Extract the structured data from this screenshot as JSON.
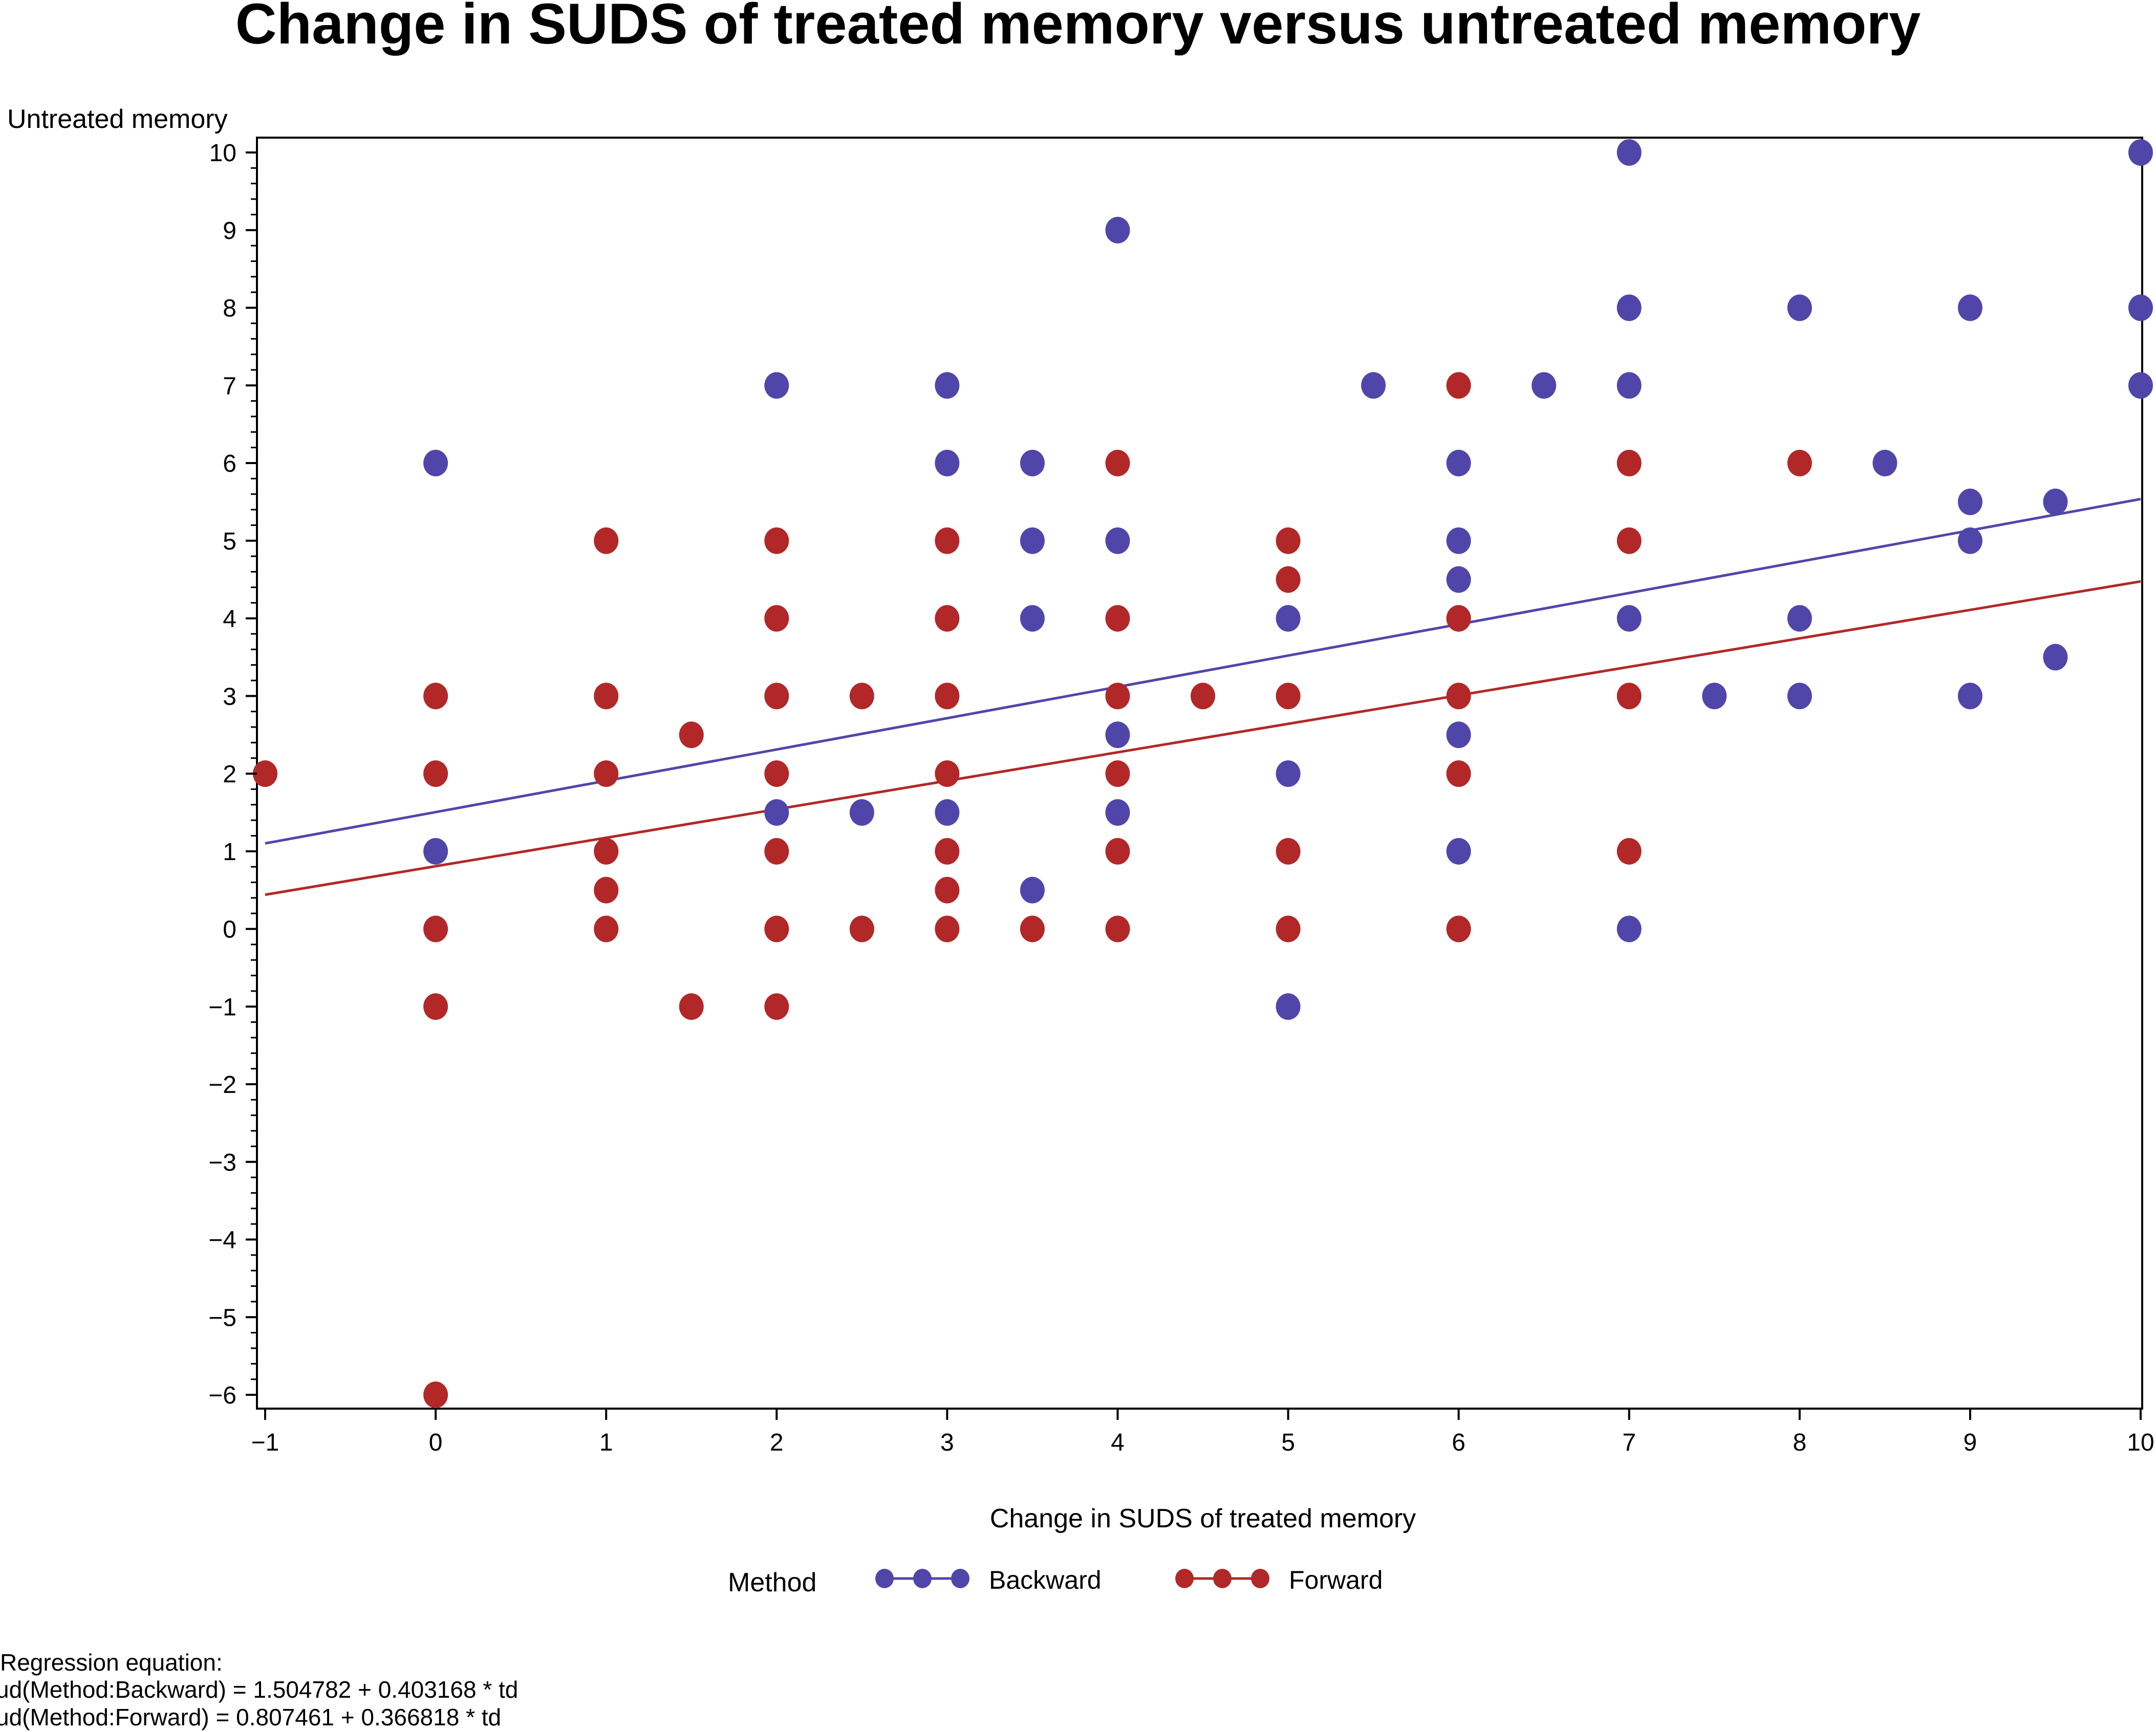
{
  "chart_data": {
    "type": "scatter",
    "title": "Change in SUDS of treated memory versus untreated memory",
    "xlabel": "Change in SUDS of treated memory",
    "ylabel": "Untreated memory",
    "xlim": [
      -1,
      10
    ],
    "ylim": [
      -6,
      10
    ],
    "xticks": [
      -1,
      0,
      1,
      2,
      3,
      4,
      5,
      6,
      7,
      8,
      9,
      10
    ],
    "yticks": [
      -6,
      -5,
      -4,
      -3,
      -2,
      -1,
      0,
      1,
      2,
      3,
      4,
      5,
      6,
      7,
      8,
      9,
      10
    ],
    "tick_labels_x": [
      "−1",
      "0",
      "1",
      "2",
      "3",
      "4",
      "5",
      "6",
      "7",
      "8",
      "9",
      "10"
    ],
    "tick_labels_y": [
      "−6",
      "−5",
      "−4",
      "−3",
      "−2",
      "−1",
      "0",
      "1",
      "2",
      "3",
      "4",
      "5",
      "6",
      "7",
      "8",
      "9",
      "10"
    ],
    "grid": false,
    "legend": {
      "title": "Method",
      "placement": "bottom"
    },
    "series": [
      {
        "name": "Backward",
        "color": "#5046AA",
        "regression": {
          "intercept": 1.504782,
          "slope": 0.403168
        },
        "points": [
          [
            0,
            6
          ],
          [
            0,
            1
          ],
          [
            2,
            7
          ],
          [
            2,
            1.5
          ],
          [
            2.5,
            1.5
          ],
          [
            3,
            7
          ],
          [
            3,
            6
          ],
          [
            3,
            1.5
          ],
          [
            3.5,
            6
          ],
          [
            3.5,
            5
          ],
          [
            3.5,
            4
          ],
          [
            3.5,
            0.5
          ],
          [
            4,
            9
          ],
          [
            4,
            5
          ],
          [
            4,
            2.5
          ],
          [
            4,
            1.5
          ],
          [
            5,
            4
          ],
          [
            5,
            2
          ],
          [
            5,
            -1
          ],
          [
            5.5,
            7
          ],
          [
            6,
            6
          ],
          [
            6,
            5
          ],
          [
            6,
            4.5
          ],
          [
            6,
            2.5
          ],
          [
            6,
            1
          ],
          [
            6.5,
            7
          ],
          [
            7,
            10
          ],
          [
            7,
            8
          ],
          [
            7,
            7
          ],
          [
            7,
            4
          ],
          [
            7,
            0
          ],
          [
            7.5,
            3
          ],
          [
            8,
            8
          ],
          [
            8,
            4
          ],
          [
            8,
            3
          ],
          [
            8.5,
            6
          ],
          [
            9,
            8
          ],
          [
            9,
            5.5
          ],
          [
            9,
            5
          ],
          [
            9,
            3
          ],
          [
            9.5,
            5.5
          ],
          [
            9.5,
            3.5
          ],
          [
            10,
            10
          ],
          [
            10,
            8
          ],
          [
            10,
            7
          ]
        ]
      },
      {
        "name": "Forward",
        "color": "#B22828",
        "regression": {
          "intercept": 0.807461,
          "slope": 0.366818
        },
        "points": [
          [
            -1,
            2
          ],
          [
            0,
            3
          ],
          [
            0,
            2
          ],
          [
            0,
            0
          ],
          [
            0,
            -1
          ],
          [
            0,
            -6
          ],
          [
            1,
            5
          ],
          [
            1,
            3
          ],
          [
            1,
            2
          ],
          [
            1,
            1
          ],
          [
            1,
            0.5
          ],
          [
            1,
            0
          ],
          [
            1.5,
            2.5
          ],
          [
            1.5,
            -1
          ],
          [
            2,
            5
          ],
          [
            2,
            4
          ],
          [
            2,
            3
          ],
          [
            2,
            2
          ],
          [
            2,
            1
          ],
          [
            2,
            0
          ],
          [
            2,
            -1
          ],
          [
            2.5,
            3
          ],
          [
            2.5,
            0
          ],
          [
            3,
            5
          ],
          [
            3,
            4
          ],
          [
            3,
            3
          ],
          [
            3,
            2
          ],
          [
            3,
            1
          ],
          [
            3,
            0.5
          ],
          [
            3,
            0
          ],
          [
            3.5,
            0
          ],
          [
            4,
            6
          ],
          [
            4,
            4
          ],
          [
            4,
            3
          ],
          [
            4,
            2
          ],
          [
            4,
            1
          ],
          [
            4,
            0
          ],
          [
            4.5,
            3
          ],
          [
            5,
            5
          ],
          [
            5,
            4.5
          ],
          [
            5,
            3
          ],
          [
            5,
            1
          ],
          [
            5,
            0
          ],
          [
            6,
            7
          ],
          [
            6,
            4
          ],
          [
            6,
            3
          ],
          [
            6,
            2
          ],
          [
            6,
            0
          ],
          [
            7,
            6
          ],
          [
            7,
            5
          ],
          [
            7,
            3
          ],
          [
            7,
            1
          ],
          [
            8,
            6
          ]
        ]
      }
    ],
    "footnote": {
      "heading": "Regression equation:",
      "lines": [
        "ud(Method:Backward) =  1.504782 + 0.403168 * td",
        "ud(Method:Forward) =  0.807461 + 0.366818 * td"
      ]
    }
  }
}
